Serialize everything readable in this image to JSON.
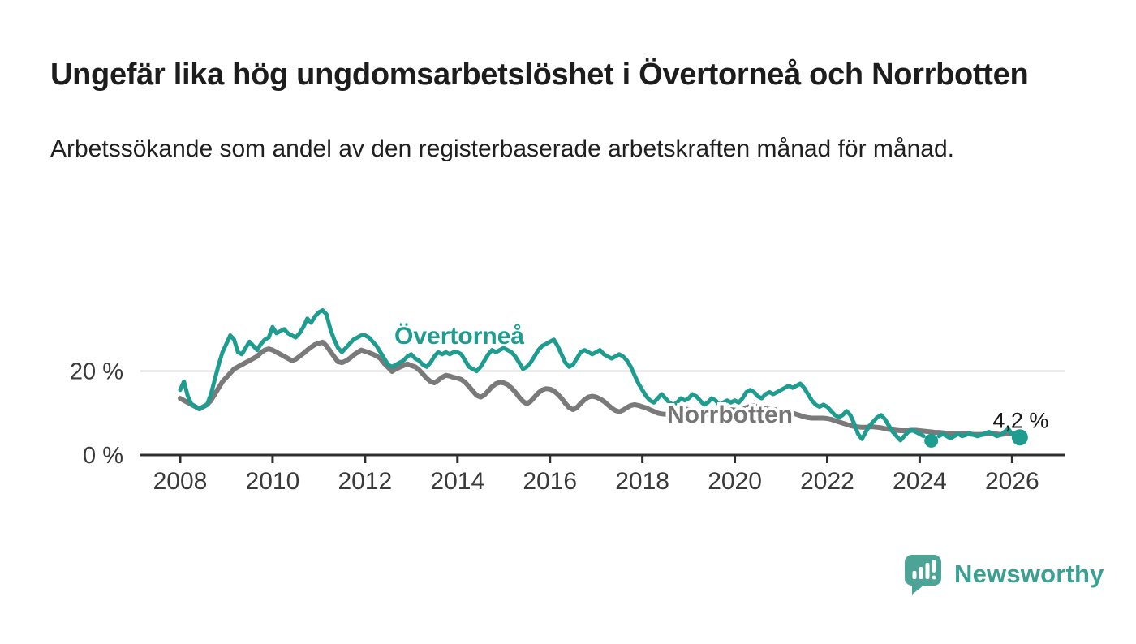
{
  "header": {
    "title": "Ungefär lika hög ungdomsarbetslöshet i Övertorneå och Norrbotten",
    "subtitle": "Arbetssökande som andel av den registerbaserade arbetskraften månad för månad."
  },
  "brand": {
    "name": "Newsworthy",
    "logo_icon": "bar-chart-speech-bubble-icon",
    "icon_color": "#4ba495",
    "text_color": "#3ba092"
  },
  "chart_data": {
    "type": "line",
    "title": "Ungefär lika hög ungdomsarbetslöshet i Övertorneå och Norrbotten",
    "subtitle": "Arbetssökande som andel av den registerbaserade arbetskraften månad för månad.",
    "unit": "%",
    "x_start": "2008-01",
    "x_end": "2026-03",
    "x_interval": "monthly",
    "x_tick_labels": [
      "2008",
      "2010",
      "2012",
      "2014",
      "2016",
      "2018",
      "2020",
      "2022",
      "2024",
      "2026"
    ],
    "y_ticks": [
      {
        "value": 0,
        "label": "0 %"
      },
      {
        "value": 20,
        "label": "20 %"
      }
    ],
    "ylim": [
      0,
      36
    ],
    "grid": "horizontal line at 20 % only",
    "legend": "inline labels next to lines",
    "colors": {
      "axis": "#2e2e2e",
      "grid": "#d9d9d9",
      "tick_label": "#3a3a3a",
      "value_label": "#1a1a1a"
    },
    "series": [
      {
        "name": "Norrbotten",
        "color": "#7a7a7a",
        "label_color": "#757575",
        "values": [
          13.5,
          13,
          12.5,
          12,
          11.5,
          11,
          11.5,
          12,
          13,
          14.5,
          16,
          17.5,
          18.5,
          19.5,
          20.5,
          21,
          21.5,
          22,
          22.5,
          23,
          23.5,
          24.4,
          25,
          25.3,
          25,
          24.5,
          24,
          23.5,
          23,
          22.5,
          22.8,
          23.5,
          24.2,
          25,
          25.7,
          26.3,
          26.6,
          26.9,
          26,
          24.7,
          23.4,
          22.2,
          22,
          22.4,
          23,
          23.8,
          24.4,
          25,
          24.7,
          24.4,
          24,
          23.6,
          23,
          21.8,
          20.9,
          19.9,
          20.5,
          20.9,
          21.3,
          21.7,
          21.3,
          21,
          20.3,
          19.3,
          18.3,
          17.5,
          17.2,
          17.8,
          18.5,
          19,
          18.8,
          18.5,
          18.3,
          18,
          17.3,
          16.3,
          15.2,
          14.2,
          13.8,
          14.3,
          15.3,
          16.3,
          17,
          17.3,
          17.2,
          16.8,
          16,
          15,
          13.8,
          12.8,
          12.2,
          12.8,
          13.8,
          14.8,
          15.5,
          15.8,
          15.7,
          15.3,
          14.5,
          13.5,
          12.3,
          11.3,
          10.8,
          11.3,
          12.3,
          13.2,
          13.8,
          14,
          13.8,
          13.4,
          12.8,
          12,
          11.2,
          10.6,
          10.3,
          10.7,
          11.3,
          11.8,
          12,
          11.8,
          11.5,
          11.2,
          10.8,
          10.4,
          10,
          9.8,
          9.7,
          10,
          10.4,
          10.8,
          11,
          11,
          10.8,
          10.6,
          10.3,
          10,
          9.8,
          9.7,
          9.8,
          10,
          10.3,
          10.6,
          10.8,
          10.8,
          10.7,
          10.6,
          10.8,
          11.3,
          11.6,
          11.7,
          11.5,
          11.2,
          11,
          10.9,
          10.8,
          10.8,
          10.7,
          10.5,
          10.3,
          10,
          9.7,
          9.4,
          9.1,
          8.9,
          8.8,
          8.8,
          8.8,
          8.8,
          8.7,
          8.5,
          8.2,
          7.9,
          7.6,
          7.3,
          7,
          6.8,
          6.7,
          6.6,
          6.6,
          6.7,
          6.7,
          6.6,
          6.5,
          6.3,
          6.1,
          6,
          5.9,
          5.8,
          5.8,
          5.8,
          5.9,
          5.9,
          5.8,
          5.7,
          5.6,
          5.5,
          5.4,
          5.4,
          5.3,
          5.2,
          5.2,
          5.2,
          5.2,
          5.2,
          5.1,
          5,
          4.9,
          4.9,
          4.9,
          5,
          5.1,
          5.1,
          5,
          4.9,
          5,
          5.1,
          5.2,
          5.2,
          5.2
        ]
      },
      {
        "name": "Övertorneå",
        "color": "#1d9c8f",
        "label_color": "#1d9c8f",
        "values": [
          15.5,
          17.5,
          14,
          12,
          11.5,
          11,
          11.5,
          12,
          14.5,
          18,
          21.5,
          24.5,
          26.5,
          28.5,
          27.5,
          24.5,
          24,
          25.5,
          27,
          26,
          25,
          26.5,
          27.5,
          28,
          30.5,
          29,
          29.5,
          30,
          29,
          28.5,
          28,
          29,
          30.5,
          32.5,
          31.5,
          33,
          34,
          34.5,
          33.5,
          30,
          27.5,
          25.5,
          24.5,
          25.5,
          26.5,
          27.5,
          28,
          28.5,
          28.5,
          28,
          27,
          26,
          24.5,
          23,
          21.5,
          21,
          21.5,
          22,
          22.5,
          23.5,
          24,
          23,
          22.5,
          21.5,
          21,
          22,
          23.5,
          24.5,
          24,
          24.5,
          24,
          24.5,
          24.5,
          24,
          22.5,
          21,
          20.5,
          20,
          21,
          22.5,
          24,
          25,
          24.5,
          25,
          25.5,
          25,
          24.5,
          23.5,
          22,
          20.5,
          21,
          22,
          23.5,
          25,
          26,
          26.5,
          27,
          27.5,
          26,
          24,
          22,
          21,
          21.5,
          23,
          24.5,
          25,
          24.5,
          24,
          24.5,
          25,
          24,
          23.5,
          23,
          23.5,
          24,
          23.5,
          22.5,
          21,
          19,
          17,
          15.5,
          14,
          13,
          12.5,
          13.5,
          14.5,
          13.5,
          12.5,
          12,
          12.5,
          13.5,
          13,
          13.5,
          14.5,
          14,
          13,
          12,
          12.5,
          13.5,
          13,
          12,
          12.5,
          13,
          12.5,
          13,
          12.5,
          13.5,
          15,
          15.5,
          15,
          14,
          13.5,
          14.5,
          15,
          14.5,
          15,
          15.5,
          16,
          16.5,
          16,
          16.5,
          17,
          16,
          14.5,
          13,
          12,
          11.5,
          12,
          11.5,
          10.5,
          9.5,
          9,
          9.5,
          10.5,
          9.5,
          7.5,
          5,
          3.8,
          5.5,
          7,
          8,
          9,
          9.5,
          8.5,
          7,
          5.5,
          4.5,
          3.5,
          4.5,
          5.5,
          6,
          5.5,
          5,
          4.5,
          null,
          3.4,
          null,
          4.5,
          5,
          4.5,
          4,
          4.5,
          5,
          4.5,
          4.8,
          5.2,
          4.8,
          4.5,
          4.8,
          5.2,
          5.5,
          5,
          4.5,
          4.8,
          5.5,
          6.2,
          5,
          4.5,
          4.2
        ]
      }
    ],
    "markers": [
      {
        "series": "Övertorneå",
        "month": "2024-04",
        "value": 3.4
      },
      {
        "series": "Övertorneå",
        "month": "2026-03",
        "value": 4.2,
        "label": "4,2 %"
      }
    ]
  }
}
